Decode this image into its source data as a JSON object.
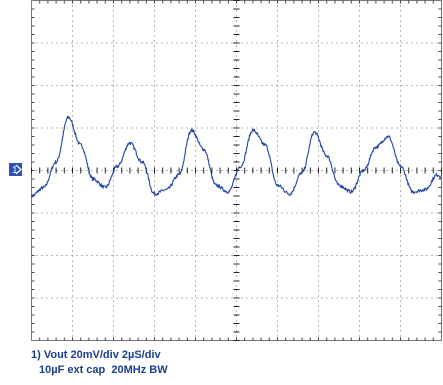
{
  "chart_data": {
    "type": "line",
    "grid": true,
    "x_axis": {
      "divisions": 10,
      "units_per_div": "2µS"
    },
    "y_axis": {
      "divisions": 8,
      "units_per_div": "20mV"
    },
    "channel_marker": "1",
    "series": [
      {
        "name": "1",
        "color": "#2146a6",
        "x_div": [
          0,
          0.3,
          0.6,
          0.9,
          1.2,
          1.5,
          1.8,
          2.1,
          2.4,
          2.7,
          3.0,
          3.3,
          3.6,
          3.9,
          4.2,
          4.5,
          4.8,
          5.1,
          5.4,
          5.7,
          6.0,
          6.3,
          6.6,
          6.9,
          7.2,
          7.5,
          7.8,
          8.1,
          8.4,
          8.7,
          9.0,
          9.3,
          9.6,
          9.9,
          10.0
        ],
        "y_div": [
          -0.6,
          -0.4,
          0.2,
          1.25,
          0.6,
          -0.2,
          -0.4,
          0.1,
          0.65,
          0.2,
          -0.55,
          -0.45,
          -0.1,
          0.95,
          0.5,
          -0.35,
          -0.5,
          0.1,
          0.95,
          0.6,
          -0.35,
          -0.55,
          -0.05,
          0.9,
          0.35,
          -0.35,
          -0.5,
          0,
          0.55,
          0.8,
          0.1,
          -0.5,
          -0.45,
          -0.1,
          -0.15
        ]
      }
    ]
  },
  "caption": {
    "line1": "1) Vout 20mV/div 2µS/div",
    "line2": "10µF ext cap  20MHz BW"
  }
}
